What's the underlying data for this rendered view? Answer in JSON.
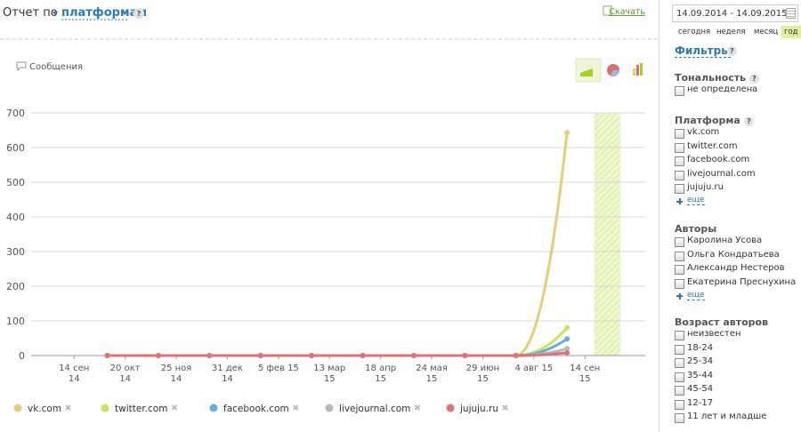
{
  "header": {
    "title_prefix": "Отчет по",
    "title_link": "платформам",
    "help": "?",
    "download": "Скачать"
  },
  "chart_data": {
    "type": "line",
    "metric_label": "Сообщения",
    "x": [
      0.65,
      1.65,
      2.65,
      3.65,
      4.65,
      5.65,
      6.65,
      7.65,
      8.65,
      9.65
    ],
    "xlim": [
      -0.84,
      11.18
    ],
    "xticks": [
      {
        "value": 0,
        "label": [
          "14 сен",
          "14"
        ]
      },
      {
        "value": 1,
        "label": [
          "20 окт",
          "14"
        ]
      },
      {
        "value": 2,
        "label": [
          "25 ноя",
          "14"
        ]
      },
      {
        "value": 3,
        "label": [
          "31 дек",
          "14"
        ]
      },
      {
        "value": 4,
        "label": [
          "5 фев 15",
          ""
        ]
      },
      {
        "value": 5,
        "label": [
          "13 мар",
          "15"
        ]
      },
      {
        "value": 6,
        "label": [
          "18 апр",
          "15"
        ]
      },
      {
        "value": 7,
        "label": [
          "24 мая",
          "15"
        ]
      },
      {
        "value": 8,
        "label": [
          "29 июн",
          "15"
        ]
      },
      {
        "value": 9,
        "label": [
          "4 авг 15",
          ""
        ]
      },
      {
        "value": 10,
        "label": [
          "14 сен",
          "15"
        ]
      }
    ],
    "ylim": [
      0,
      700
    ],
    "yticks": [
      0,
      100,
      200,
      300,
      400,
      500,
      600,
      700
    ],
    "grid": true,
    "series": [
      {
        "name": "vk.com",
        "color": "#e6cd78",
        "values": [
          0,
          0,
          0,
          0,
          0,
          0,
          0,
          0,
          0,
          643
        ]
      },
      {
        "name": "twitter.com",
        "color": "#c6e65c",
        "values": [
          0,
          0,
          0,
          0,
          0,
          0,
          0,
          0,
          0,
          80
        ]
      },
      {
        "name": "facebook.com",
        "color": "#68ade2",
        "values": [
          0,
          0,
          0,
          0,
          0,
          0,
          0,
          0,
          0,
          48
        ]
      },
      {
        "name": "livejournal.com",
        "color": "#b9b9b9",
        "values": [
          0,
          0,
          0,
          0,
          0,
          0,
          0,
          0,
          0,
          20
        ]
      },
      {
        "name": "jujuju.ru",
        "color": "#e27272",
        "values": [
          0,
          0,
          0,
          0,
          0,
          0,
          0,
          0,
          0,
          8
        ]
      }
    ]
  },
  "sidebar": {
    "date_range": "14.09.2014 - 14.09.2015",
    "periods": [
      "сегодня",
      "неделя",
      "месяц",
      "год"
    ],
    "filters_title": "Фильтры",
    "filters_help": "?",
    "sections": [
      {
        "title": "Тональность",
        "help": "?",
        "items": [
          "не определена"
        ]
      },
      {
        "title": "Платформа",
        "help": "?",
        "items": [
          "vk.com",
          "twitter.com",
          "facebook.com",
          "livejournal.com",
          "jujuju.ru"
        ],
        "more": "еще"
      },
      {
        "title": "Авторы",
        "items": [
          "Каролина Усова",
          "Ольга Кондратьева",
          "Александр Нестеров",
          "Екатерина Преснухина"
        ],
        "more": "еще"
      },
      {
        "title": "Возраст авторов",
        "items": [
          "неизвестен",
          "18-24",
          "25-34",
          "35-44",
          "45-54",
          "12-17",
          "11 лет и младше"
        ]
      }
    ]
  }
}
